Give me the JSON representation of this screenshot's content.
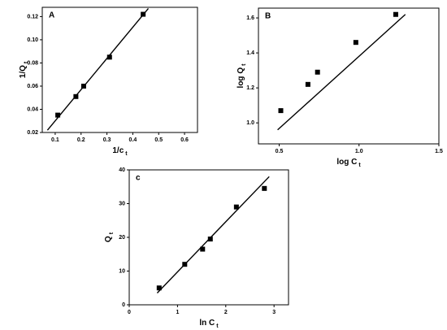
{
  "chart_data": [
    {
      "type": "scatter",
      "panel_label": "A",
      "x_label": "1/c",
      "x_label_sub": "t",
      "y_label": "1/Q",
      "y_label_sub": "t",
      "xlim": [
        0.05,
        0.65
      ],
      "ylim": [
        0.02,
        0.128
      ],
      "xticks": [
        0.1,
        0.2,
        0.3,
        0.4,
        0.5,
        0.6
      ],
      "yticks": [
        0.02,
        0.04,
        0.06,
        0.08,
        {
          "value": 0.1,
          "label": "0.10"
        },
        0.12
      ],
      "points": {
        "x": [
          0.11,
          0.18,
          0.21,
          0.31,
          0.44
        ],
        "y": [
          0.035,
          0.051,
          0.06,
          0.085,
          0.122
        ]
      },
      "fit_line": {
        "x": [
          0.07,
          0.46
        ],
        "y": [
          0.022,
          0.127
        ]
      },
      "color": "#000000"
    },
    {
      "type": "scatter",
      "panel_label": "B",
      "x_label": "log C",
      "x_label_sub": "t",
      "y_label": "log Q",
      "y_label_sub": "t",
      "xlim": [
        0.37,
        1.5
      ],
      "ylim": [
        0.88,
        1.656
      ],
      "xticks": [
        0.5,
        {
          "value": 1.0,
          "label": "1.0"
        },
        1.5
      ],
      "yticks": [
        {
          "value": 1.0,
          "label": "1.0"
        },
        1.2,
        1.4,
        1.6
      ],
      "points": {
        "x": [
          0.51,
          0.68,
          0.74,
          0.98,
          1.23
        ],
        "y": [
          1.07,
          1.22,
          1.29,
          1.46,
          1.62
        ]
      },
      "fit_line": {
        "x": [
          0.49,
          1.29
        ],
        "y": [
          0.96,
          1.62
        ]
      },
      "color": "#000000"
    },
    {
      "type": "scatter",
      "panel_label": "c",
      "x_label": "ln C",
      "x_label_sub": "t",
      "y_label": "Q",
      "y_label_sub": "t",
      "xlim": [
        0,
        3.3
      ],
      "ylim": [
        0,
        40
      ],
      "xticks": [
        0,
        1,
        2,
        3
      ],
      "yticks": [
        0,
        10,
        20,
        30,
        40
      ],
      "points": {
        "x": [
          0.62,
          1.15,
          1.52,
          1.68,
          2.22,
          2.8
        ],
        "y": [
          5,
          12,
          16.5,
          19.5,
          29,
          34.5
        ]
      },
      "fit_line": {
        "x": [
          0.58,
          2.9
        ],
        "y": [
          3.5,
          38
        ]
      },
      "color": "#000000"
    }
  ]
}
